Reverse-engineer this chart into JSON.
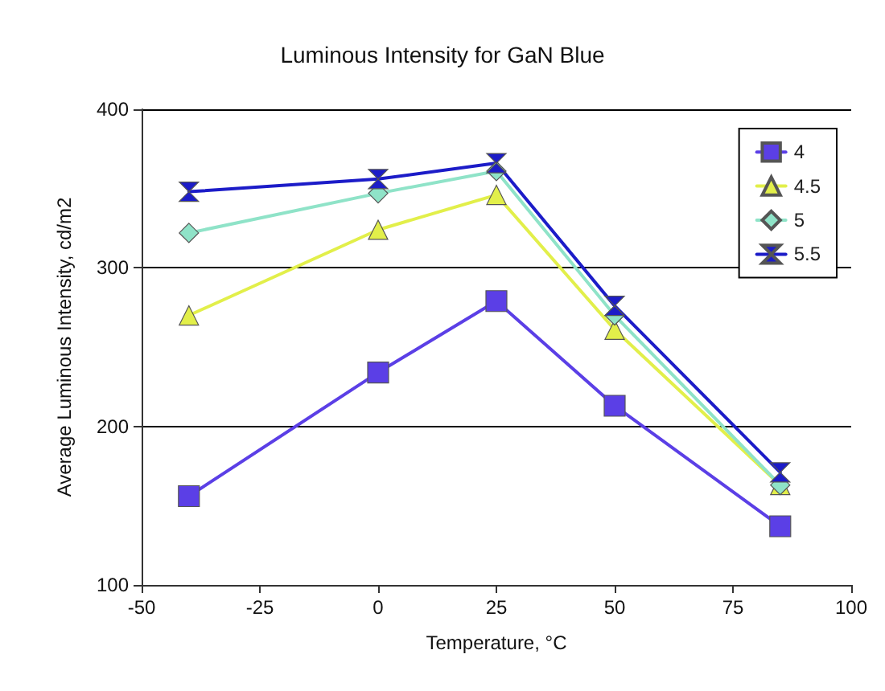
{
  "chart_data": {
    "type": "line",
    "title": "Luminous Intensity for GaN Blue",
    "xlabel": "Temperature, °C",
    "ylabel": "Average Luminous Intensity, cd/m2",
    "x": [
      -40,
      0,
      25,
      50,
      85
    ],
    "series": [
      {
        "name": "4",
        "color": "#5b3fe6",
        "marker": "square",
        "values": [
          156,
          234,
          279,
          213,
          137
        ]
      },
      {
        "name": "4.5",
        "color": "#e2ef4a",
        "marker": "triangle",
        "values": [
          270,
          324,
          346,
          261,
          163
        ]
      },
      {
        "name": "5",
        "color": "#8fe3c8",
        "marker": "diamond",
        "values": [
          322,
          347,
          361,
          270,
          163
        ]
      },
      {
        "name": "5.5",
        "color": "#1c1cc8",
        "marker": "cross",
        "values": [
          348,
          356,
          366,
          276,
          171
        ]
      }
    ],
    "xlim": [
      -50,
      100
    ],
    "xticks": [
      -50,
      -25,
      0,
      25,
      50,
      75,
      100
    ],
    "ylim": [
      100,
      400
    ],
    "yticks": [
      100,
      200,
      300,
      400
    ],
    "grid": "y",
    "legend": "top right"
  }
}
